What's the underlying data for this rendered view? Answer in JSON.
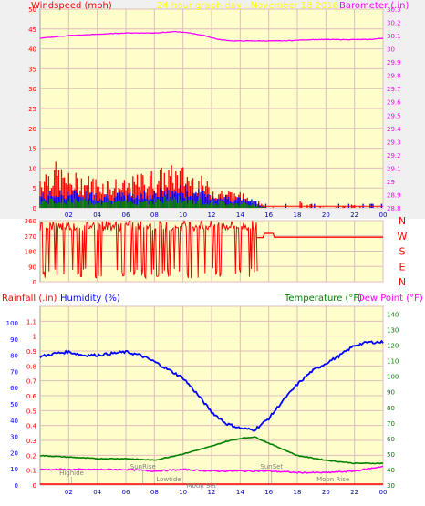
{
  "colors": {
    "background": "#ffffff",
    "plot_bg": "#ffffcc",
    "grid": "#e0bcbc",
    "wind_speed": "#ff0000",
    "wind_avg": "#0000ff",
    "wind_low": "#008000",
    "barometer": "#ff00ff",
    "direction": "#ff0000",
    "humidity": "#0000ff",
    "temperature": "#008000",
    "dewpoint": "#ff00ff",
    "rainfall": "#ff0000",
    "title": "#ffff00",
    "astro": "#808080"
  },
  "header": {
    "wind_label": "Windspeed (mph)",
    "title": "24 hour graph day : November 18 2016",
    "baro_label": "Barometer (.in)"
  },
  "lower_header": {
    "rain_label": "Rainfall (.in)",
    "humidity_label": "Humidity (%)",
    "temp_label": "Temperature (°F)",
    "dew_label": "Dew Point (°F)"
  },
  "compass": [
    "N",
    "W",
    "S",
    "E",
    "N"
  ],
  "astro_labels": [
    {
      "text": "Highide",
      "x": 2.2,
      "row": 1
    },
    {
      "text": "SunRise",
      "x": 7.2,
      "row": 0
    },
    {
      "text": "Lowtide",
      "x": 9.0,
      "row": 2
    },
    {
      "text": "Moon Set",
      "x": 11.3,
      "row": 3
    },
    {
      "text": "SunSet",
      "x": 16.2,
      "row": 0
    },
    {
      "text": "Moon Rise",
      "x": 20.5,
      "row": 2
    }
  ],
  "chart_data": [
    {
      "type": "line",
      "name": "wind_barometer",
      "x_ticks": [
        "02",
        "04",
        "06",
        "08",
        "10",
        "12",
        "14",
        "16",
        "18",
        "20",
        "22",
        "00"
      ],
      "ylim_left": [
        0,
        50
      ],
      "y_ticks_left": [
        "0",
        "5",
        "10",
        "15",
        "20",
        "25",
        "30",
        "35",
        "40",
        "45",
        "50"
      ],
      "ylim_right": [
        28.8,
        30.3
      ],
      "y_ticks_right": [
        "28.8",
        "28.9",
        "29",
        "29.1",
        "29.2",
        "29.3",
        "29.4",
        "29.5",
        "29.6",
        "29.7",
        "29.8",
        "29.9",
        "30",
        "30.1",
        "30.2",
        "30.3"
      ],
      "barometer": {
        "x": [
          0,
          2,
          4,
          6,
          8,
          9.5,
          10.5,
          11.5,
          12.5,
          13.5,
          15,
          17,
          19,
          21,
          23,
          24
        ],
        "y": [
          30.08,
          30.1,
          30.11,
          30.12,
          30.12,
          30.13,
          30.12,
          30.1,
          30.07,
          30.06,
          30.06,
          30.06,
          30.07,
          30.07,
          30.07,
          30.08
        ]
      },
      "wind_gust_envelope": {
        "x": [
          0,
          1,
          2,
          3,
          4,
          5,
          6,
          7,
          8,
          9,
          10,
          11,
          12,
          13,
          14,
          15,
          15.5,
          16,
          18,
          20,
          22,
          24
        ],
        "y": [
          10,
          12,
          9,
          9,
          8,
          8,
          7,
          9,
          10,
          11,
          11,
          9,
          6,
          5,
          4,
          3,
          1,
          0,
          2,
          0,
          1,
          0
        ]
      },
      "wind_avg_envelope": {
        "x": [
          0,
          2,
          4,
          6,
          8,
          10,
          12,
          14,
          15,
          16,
          24
        ],
        "y": [
          4,
          5,
          4,
          4,
          5,
          6,
          4,
          3,
          2,
          0,
          0
        ]
      }
    },
    {
      "type": "scatter",
      "name": "wind_direction",
      "ylim": [
        0,
        360
      ],
      "y_ticks": [
        "0",
        "90",
        "180",
        "270",
        "360"
      ],
      "direction": {
        "x": [
          0,
          15.2,
          15.6,
          16.0,
          16.5,
          24
        ],
        "y": [
          340,
          260,
          280,
          270,
          260,
          260
        ]
      }
    },
    {
      "type": "line",
      "name": "rain_humidity_temp",
      "x_ticks": [
        "02",
        "04",
        "06",
        "08",
        "10",
        "12",
        "14",
        "16",
        "18",
        "20",
        "22",
        "00"
      ],
      "ylim_left": [
        0,
        1.2
      ],
      "y_ticks_left": [
        "0",
        "0.1",
        "0.2",
        "0.3",
        "0.4",
        "0.5",
        "0.6",
        "0.7",
        "0.8",
        "0.9",
        "1",
        "1.1"
      ],
      "y_ticks_left_outer": [
        "0",
        "10",
        "20",
        "30",
        "40",
        "50",
        "60",
        "70",
        "80",
        "90",
        "100"
      ],
      "ylim_right": [
        30,
        145
      ],
      "y_ticks_right": [
        "30",
        "40",
        "50",
        "60",
        "70",
        "80",
        "90",
        "100",
        "110",
        "120",
        "130",
        "140"
      ],
      "humidity": {
        "x": [
          0,
          1,
          2,
          3,
          4,
          5,
          6,
          7,
          8,
          9,
          10,
          11,
          12,
          13,
          14,
          15,
          16,
          17,
          18,
          19,
          20,
          21,
          22,
          23,
          24
        ],
        "y": [
          79,
          81,
          82,
          80,
          80,
          81,
          82,
          80,
          76,
          71,
          66,
          56,
          45,
          38,
          35,
          34,
          41,
          52,
          62,
          70,
          75,
          80,
          86,
          88,
          88
        ]
      },
      "temperature": {
        "x": [
          0,
          2,
          4,
          6,
          8,
          10,
          12,
          13,
          14,
          15,
          16,
          17,
          18,
          20,
          22,
          24
        ],
        "y": [
          49,
          48,
          47,
          47,
          46,
          50,
          55,
          58,
          60,
          61,
          57,
          53,
          49,
          46,
          44,
          44
        ]
      },
      "dewpoint": {
        "x": [
          0,
          2,
          4,
          6,
          8,
          10,
          12,
          14,
          16,
          18,
          20,
          22,
          24
        ],
        "y": [
          40,
          40,
          40,
          40,
          39,
          40,
          39,
          39,
          39,
          38,
          38,
          39,
          42
        ]
      },
      "rainfall": {
        "x": [
          0,
          24
        ],
        "y": [
          0,
          0
        ]
      }
    }
  ]
}
